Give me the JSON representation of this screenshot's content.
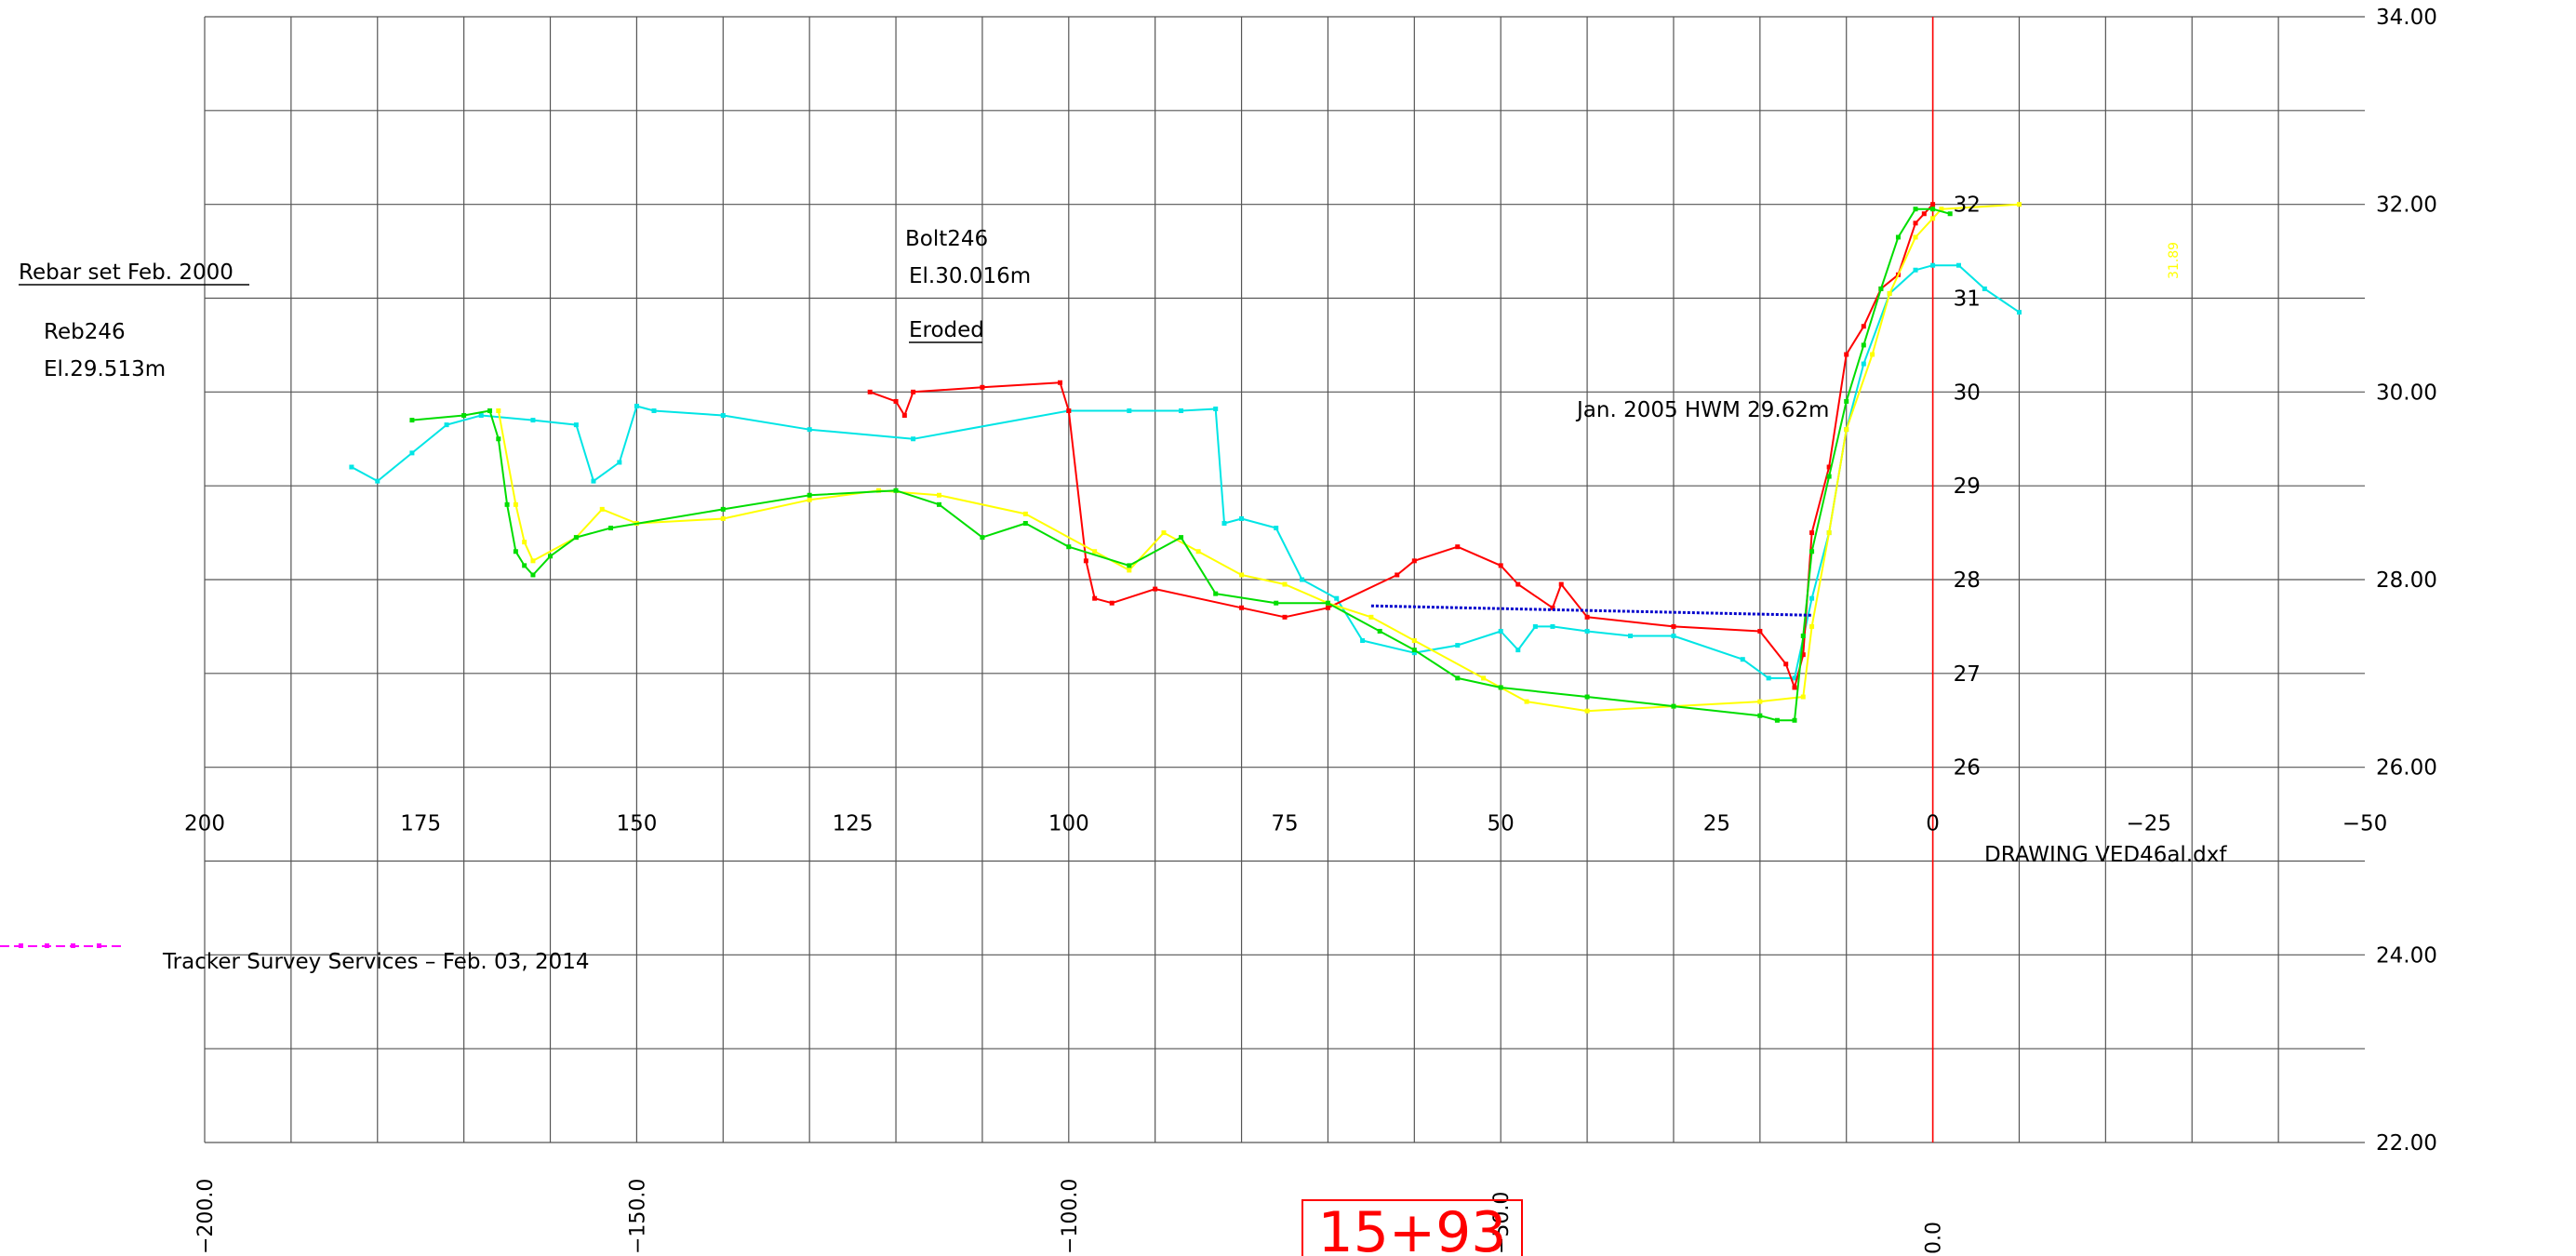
{
  "chart_data": {
    "type": "line",
    "title": "",
    "xlabel": "",
    "ylabel": "",
    "x_axis_reversed": true,
    "xlim": [
      200,
      -50
    ],
    "ylim": [
      22,
      34
    ],
    "grid": true,
    "x_ticks": [
      200,
      175,
      150,
      125,
      100,
      75,
      50,
      25,
      0,
      -25,
      -50
    ],
    "x_tick_labels": [
      "200",
      "175",
      "150",
      "125",
      "100",
      "75",
      "50",
      "25",
      "0",
      "−25",
      "−50"
    ],
    "y_ticks": [
      22,
      24,
      26,
      28,
      30,
      32,
      34
    ],
    "y_tick_labels": [
      "22.00",
      "24.00",
      "26.00",
      "28.00",
      "30.00",
      "32.00",
      "34.00"
    ],
    "inner_labels": [
      "26",
      "27",
      "28",
      "29",
      "30",
      "31",
      "32"
    ],
    "station_labels": [
      "−200.0",
      "−150.0",
      "−100.0",
      "−50.0",
      "0.0"
    ],
    "station_box": "15+93",
    "station_values": [
      200,
      150,
      100,
      50,
      0
    ],
    "reference_line_x": 0,
    "annotations": {
      "rebar_title": "Rebar set Feb. 2000",
      "reb_name": "Reb246",
      "reb_elev": "El.29.513m",
      "bolt_name": "Bolt246",
      "bolt_elev": "El.30.016m",
      "eroded": "Eroded",
      "hwm": "Jan. 2005 HWM 29.62m",
      "drawing": "DRAWING VED46al.dxf",
      "tracker": "Tracker Survey Services – Feb. 03, 2014",
      "rotated_label": "31.89"
    },
    "series": [
      {
        "color": "#00e5e5",
        "x": [
          183,
          180,
          176,
          172,
          168,
          162,
          157,
          155,
          152,
          150,
          148,
          140,
          130,
          118,
          100,
          93,
          87,
          83,
          82,
          80,
          76,
          73,
          69,
          66,
          60,
          55,
          50,
          48,
          46,
          44,
          40,
          35,
          30,
          22,
          19,
          16,
          14,
          12,
          10,
          8,
          5,
          2,
          0,
          -3,
          -6,
          -10
        ],
        "y": [
          29.2,
          29.05,
          29.35,
          29.65,
          29.75,
          29.7,
          29.65,
          29.05,
          29.25,
          29.85,
          29.8,
          29.75,
          29.6,
          29.5,
          29.8,
          29.8,
          29.8,
          29.82,
          28.6,
          28.65,
          28.55,
          28.0,
          27.8,
          27.35,
          27.22,
          27.3,
          27.45,
          27.25,
          27.5,
          27.5,
          27.45,
          27.4,
          27.4,
          27.15,
          26.95,
          26.95,
          27.8,
          28.5,
          29.6,
          30.3,
          31.05,
          31.3,
          31.35,
          31.35,
          31.1,
          30.85
        ]
      },
      {
        "color": "#ff0000",
        "x": [
          123,
          120,
          119,
          118,
          110,
          101,
          100,
          98,
          97,
          95,
          90,
          80,
          75,
          70,
          62,
          60,
          55,
          50,
          48,
          44,
          43,
          40,
          30,
          20,
          17,
          16,
          15,
          14,
          12,
          10,
          8,
          6,
          4,
          2,
          1,
          0
        ],
        "y": [
          30.0,
          29.9,
          29.75,
          30.0,
          30.05,
          30.1,
          29.8,
          28.2,
          27.8,
          27.75,
          27.9,
          27.7,
          27.6,
          27.7,
          28.05,
          28.2,
          28.35,
          28.15,
          27.95,
          27.7,
          27.95,
          27.6,
          27.5,
          27.45,
          27.1,
          26.85,
          27.2,
          28.5,
          29.2,
          30.4,
          30.7,
          31.1,
          31.25,
          31.8,
          31.9,
          32.0
        ]
      },
      {
        "color": "#ffff00",
        "x": [
          166,
          164,
          163,
          162,
          157,
          154,
          150,
          140,
          130,
          122,
          115,
          105,
          97,
          93,
          89,
          85,
          80,
          75,
          70,
          65,
          60,
          52,
          50,
          47,
          40,
          30,
          20,
          15,
          14,
          12,
          10,
          7,
          5,
          2,
          0,
          -1,
          -10
        ],
        "y": [
          29.8,
          28.8,
          28.4,
          28.2,
          28.45,
          28.75,
          28.6,
          28.65,
          28.85,
          28.95,
          28.9,
          28.7,
          28.3,
          28.1,
          28.5,
          28.3,
          28.05,
          27.95,
          27.75,
          27.6,
          27.35,
          26.95,
          26.85,
          26.7,
          26.6,
          26.65,
          26.7,
          26.75,
          27.5,
          28.5,
          29.6,
          30.4,
          31.05,
          31.65,
          31.85,
          31.95,
          32.0
        ]
      },
      {
        "color": "#00dd00",
        "x": [
          176,
          170,
          167,
          166,
          165,
          164,
          163,
          162,
          160,
          157,
          153,
          140,
          130,
          120,
          115,
          110,
          105,
          100,
          93,
          87,
          83,
          76,
          70,
          64,
          60,
          55,
          50,
          40,
          30,
          20,
          18,
          16,
          15,
          14,
          12,
          10,
          8,
          6,
          4,
          2,
          0,
          -2
        ],
        "y": [
          29.7,
          29.75,
          29.8,
          29.5,
          28.8,
          28.3,
          28.15,
          28.05,
          28.25,
          28.45,
          28.55,
          28.75,
          28.9,
          28.95,
          28.8,
          28.45,
          28.6,
          28.35,
          28.15,
          28.45,
          27.85,
          27.75,
          27.75,
          27.45,
          27.25,
          26.95,
          26.85,
          26.75,
          26.65,
          26.55,
          26.5,
          26.5,
          27.4,
          28.3,
          29.1,
          29.9,
          30.5,
          31.1,
          31.65,
          31.95,
          31.95,
          31.9
        ]
      },
      {
        "color": "#0000cc",
        "x": [
          65,
          14
        ],
        "y": [
          27.72,
          27.62
        ]
      }
    ]
  }
}
